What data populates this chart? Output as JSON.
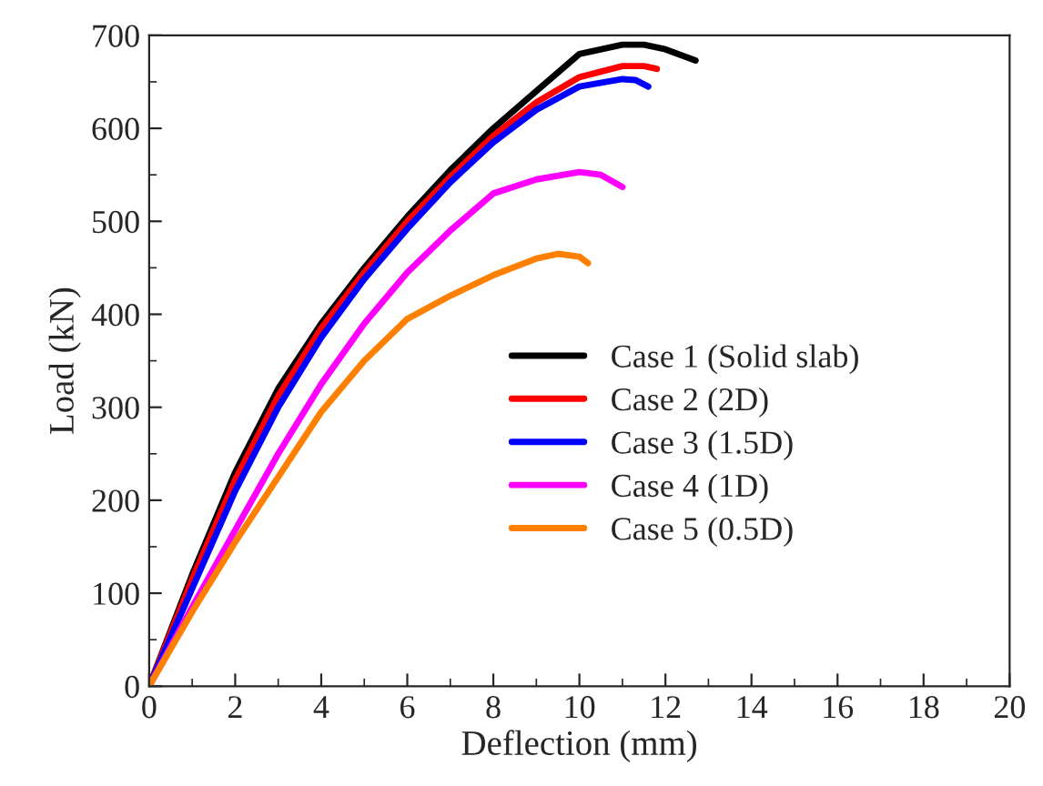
{
  "chart_data": {
    "type": "line",
    "xlabel": "Deflection (mm)",
    "ylabel": "Load (kN)",
    "xlim": [
      0,
      20
    ],
    "ylim": [
      0,
      700
    ],
    "xticks": [
      0,
      2,
      4,
      6,
      8,
      10,
      12,
      14,
      16,
      18,
      20
    ],
    "yticks": [
      0,
      100,
      200,
      300,
      400,
      500,
      600,
      700
    ],
    "grid": false,
    "legend": "right",
    "marker": "none",
    "line_style": "solid",
    "series": [
      {
        "name": "Case 1 (Solid slab)",
        "color": "#000000",
        "x": [
          0,
          1,
          2,
          3,
          4,
          5,
          6,
          7,
          8,
          9,
          10,
          11,
          11.5,
          12,
          12.7
        ],
        "values": [
          0,
          120,
          230,
          320,
          390,
          450,
          505,
          555,
          600,
          640,
          680,
          690,
          690,
          685,
          673
        ]
      },
      {
        "name": "Case 2 (2D)",
        "color": "#ff0000",
        "x": [
          0,
          1,
          2,
          3,
          4,
          5,
          6,
          7,
          8,
          9,
          10,
          11,
          11.5,
          11.8
        ],
        "values": [
          0,
          115,
          222,
          312,
          385,
          445,
          500,
          548,
          592,
          628,
          655,
          667,
          667,
          664
        ]
      },
      {
        "name": "Case 3 (1.5D)",
        "color": "#0000ff",
        "x": [
          0,
          1,
          2,
          3,
          4,
          5,
          6,
          7,
          8,
          9,
          10,
          11,
          11.3,
          11.6
        ],
        "values": [
          0,
          105,
          210,
          300,
          375,
          438,
          492,
          542,
          585,
          620,
          645,
          653,
          652,
          645
        ]
      },
      {
        "name": "Case 4 (1D)",
        "color": "#ff00ff",
        "x": [
          0,
          1,
          2,
          3,
          4,
          5,
          6,
          7,
          8,
          9,
          10,
          10.5,
          11
        ],
        "values": [
          0,
          85,
          168,
          250,
          325,
          390,
          445,
          490,
          530,
          545,
          553,
          550,
          537
        ]
      },
      {
        "name": "Case 5 (0.5D)",
        "color": "#ff8000",
        "x": [
          0,
          1,
          2,
          3,
          4,
          5,
          6,
          7,
          8,
          9,
          9.5,
          10,
          10.2
        ],
        "values": [
          0,
          80,
          155,
          225,
          295,
          350,
          395,
          420,
          442,
          460,
          465,
          462,
          455
        ]
      }
    ]
  }
}
